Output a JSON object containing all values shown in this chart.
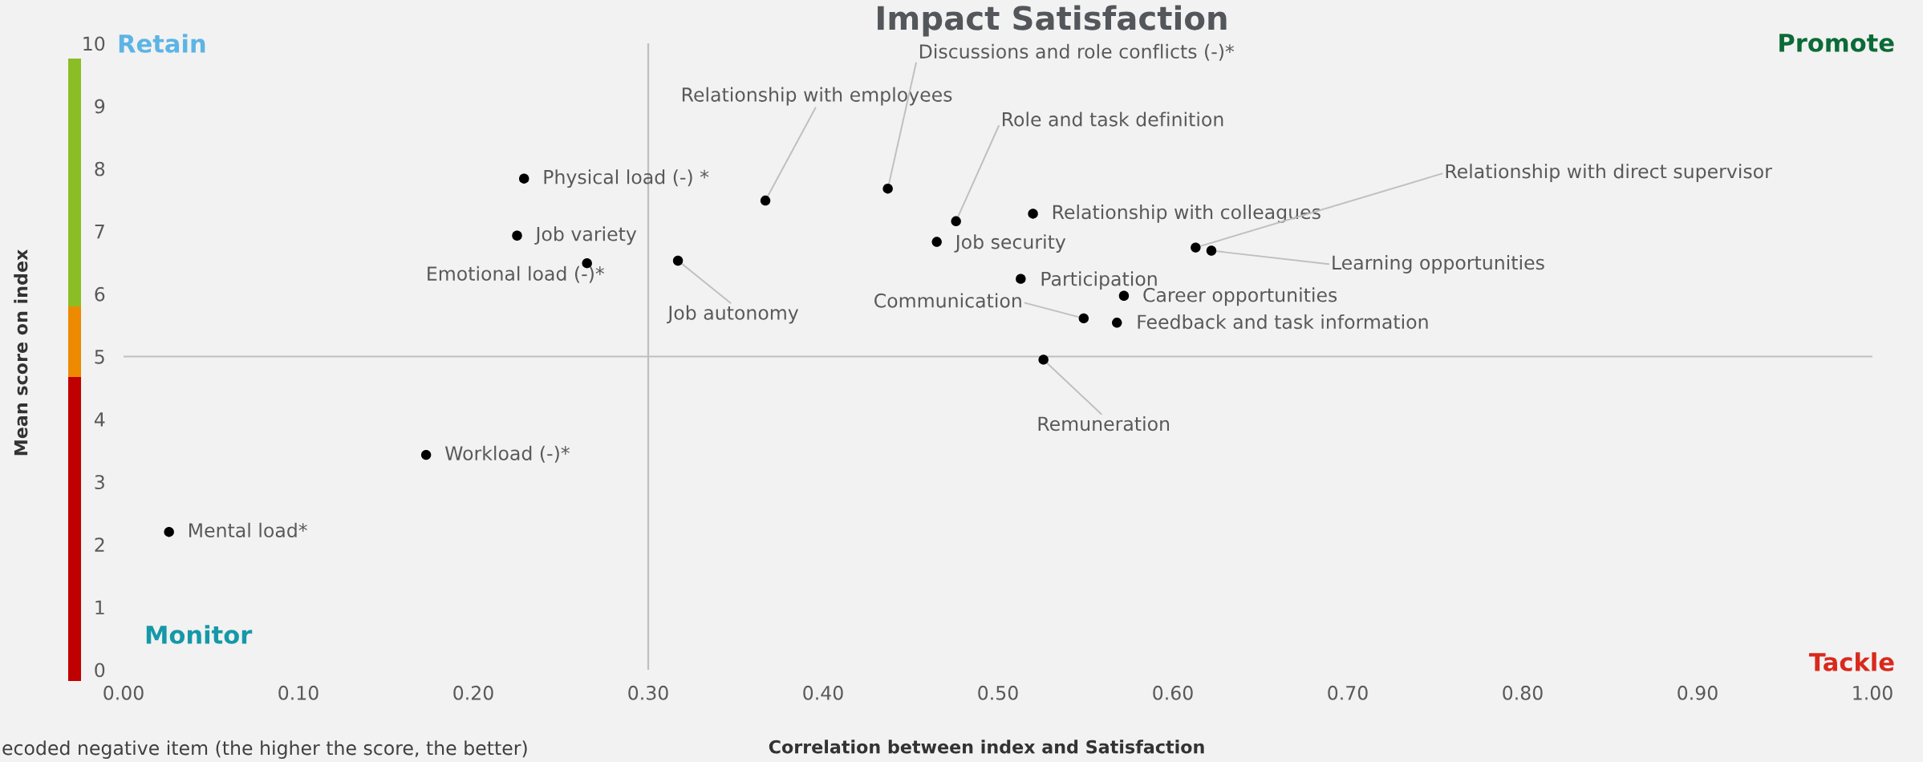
{
  "chart_data": {
    "type": "scatter",
    "title": "Impact Satisfaction",
    "xlabel": "Correlation between index and Satisfaction",
    "ylabel": "Mean score on index",
    "x": [
      0.026,
      0.173,
      0.225,
      0.229,
      0.265,
      0.317,
      0.367,
      0.437,
      0.465,
      0.476,
      0.513,
      0.52,
      0.526,
      0.549,
      0.568,
      0.572,
      0.613,
      0.622
    ],
    "series": [
      {
        "color": "#000000",
        "values": [
          2.2,
          3.43,
          6.93,
          7.84,
          6.49,
          6.53,
          7.49,
          7.68,
          6.83,
          7.16,
          6.24,
          7.28,
          4.95,
          5.61,
          5.54,
          5.97,
          6.74,
          6.69
        ]
      }
    ],
    "marker": "circle",
    "xlim": [
      0,
      1
    ],
    "ylim": [
      0,
      10
    ],
    "xticks": [
      {
        "value": 0,
        "label": "0.00"
      },
      {
        "value": 0.1,
        "label": "0.10"
      },
      {
        "value": 0.2,
        "label": "0.20"
      },
      {
        "value": 0.3,
        "label": "0.30"
      },
      {
        "value": 0.4,
        "label": "0.40"
      },
      {
        "value": 0.5,
        "label": "0.50"
      },
      {
        "value": 0.6,
        "label": "0.60"
      },
      {
        "value": 0.7,
        "label": "0.70"
      },
      {
        "value": 0.8,
        "label": "0.80"
      },
      {
        "value": 0.9,
        "label": "0.90"
      },
      {
        "value": 1,
        "label": "1.00"
      }
    ],
    "yticks": [
      0,
      1,
      2,
      3,
      4,
      5,
      6,
      7,
      8,
      9,
      10
    ],
    "ref_lines": [
      {
        "axis": "x",
        "value": 0.3,
        "color": "#bfbfbf"
      },
      {
        "axis": "y",
        "value": 5,
        "color": "#bfbfbf"
      }
    ],
    "annotations": [
      {
        "text": "Mental load*",
        "x": 0.026,
        "y": 2.2
      },
      {
        "text": "Workload (-)*",
        "x": 0.173,
        "y": 3.43
      },
      {
        "text": "Job variety",
        "x": 0.225,
        "y": 6.93
      },
      {
        "text": "Physical load (-) *",
        "x": 0.229,
        "y": 7.84
      },
      {
        "text": "Emotional load (-)*",
        "x": 0.265,
        "y": 6.49
      },
      {
        "text": "Job autonomy",
        "x": 0.317,
        "y": 6.53
      },
      {
        "text": "Relationship with employees",
        "x": 0.367,
        "y": 7.49
      },
      {
        "text": "Discussions and role conflicts (-)*",
        "x": 0.437,
        "y": 7.68
      },
      {
        "text": "Job security",
        "x": 0.465,
        "y": 6.83
      },
      {
        "text": "Role and task definition",
        "x": 0.476,
        "y": 7.16
      },
      {
        "text": "Participation",
        "x": 0.513,
        "y": 6.24
      },
      {
        "text": "Relationship with colleagues",
        "x": 0.52,
        "y": 7.28
      },
      {
        "text": "Remuneration",
        "x": 0.526,
        "y": 4.95
      },
      {
        "text": "Communication",
        "x": 0.549,
        "y": 5.61
      },
      {
        "text": "Feedback and task information",
        "x": 0.568,
        "y": 5.54
      },
      {
        "text": "Career opportunities",
        "x": 0.572,
        "y": 5.97
      },
      {
        "text": "Relationship with direct supervisor",
        "x": 0.613,
        "y": 6.74
      },
      {
        "text": "Learning opportunities",
        "x": 0.622,
        "y": 6.69
      },
      "Retain",
      "Promote",
      "Monitor",
      "Tackle",
      "ecoded negative item (the higher the score, the better)"
    ]
  }
}
